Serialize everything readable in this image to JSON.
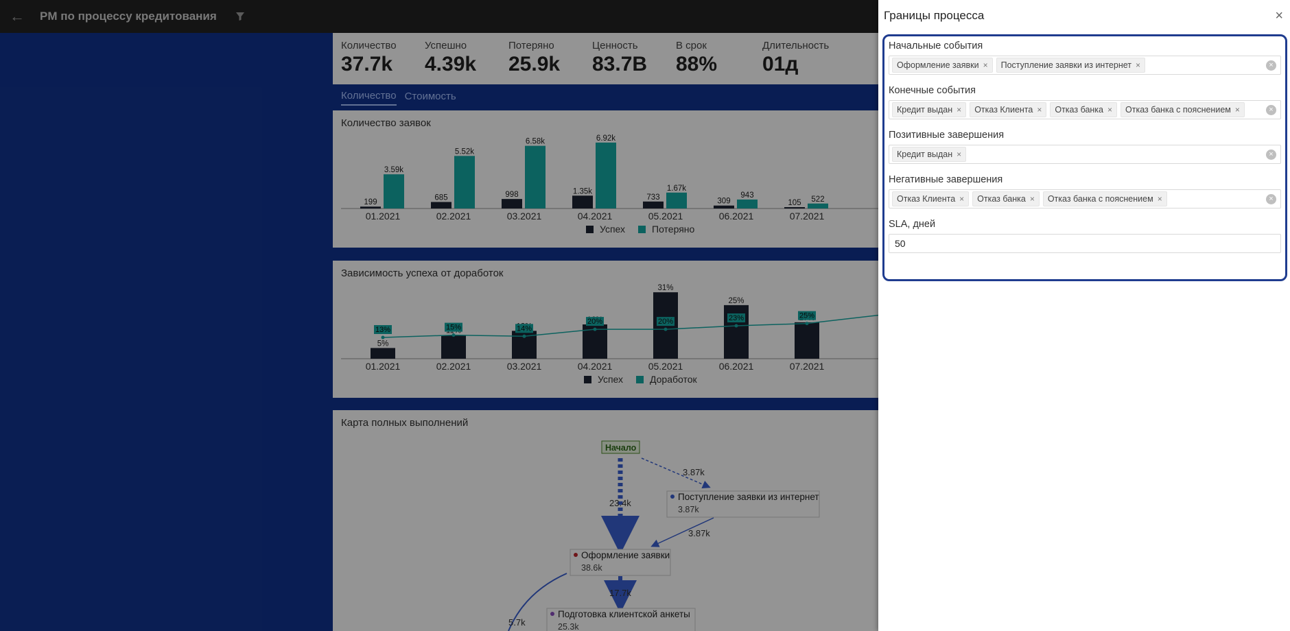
{
  "app": {
    "title": "PM по процессу кредитования",
    "back_icon": "arrow-left-icon",
    "filter_icon": "filter-icon"
  },
  "kpis": [
    {
      "label": "Количество",
      "value": "37.7k"
    },
    {
      "label": "Успешно",
      "value": "4.39k"
    },
    {
      "label": "Потеряно",
      "value": "25.9k"
    },
    {
      "label": "Ценность",
      "value": "83.7B"
    },
    {
      "label": "В срок",
      "value": "88%"
    },
    {
      "label": "Длительность",
      "value": "01д"
    }
  ],
  "tabs": [
    {
      "label": "Количество",
      "active": true
    },
    {
      "label": "Стоимость",
      "active": false
    }
  ],
  "colors": {
    "success": "#1c2333",
    "lost": "#16a9a4",
    "line": "#16a9a4",
    "flow": "#3a5fd0",
    "drawer_border": "#1f3c8f"
  },
  "chart1": {
    "title": "Количество заявок",
    "legend": [
      "Успех",
      "Потеряно"
    ]
  },
  "chart2": {
    "title": "Зависимость успеха от доработок",
    "legend": [
      "Успех",
      "Доработок"
    ]
  },
  "chart_data": [
    {
      "type": "bar",
      "title": "Количество заявок",
      "categories": [
        "01.2021",
        "02.2021",
        "03.2021",
        "04.2021",
        "05.2021",
        "06.2021",
        "07.2021"
      ],
      "series": [
        {
          "name": "Успех",
          "values": [
            199,
            685,
            998,
            1350,
            733,
            309,
            105
          ],
          "labels": [
            "199",
            "685",
            "998",
            "1.35k",
            "733",
            "309",
            "105"
          ]
        },
        {
          "name": "Потеряно",
          "values": [
            3590,
            5520,
            6580,
            6920,
            1670,
            943,
            522
          ],
          "labels": [
            "3.59k",
            "5.52k",
            "6.58k",
            "6.92k",
            "1.67k",
            "943",
            "522"
          ]
        }
      ],
      "ylim": [
        0,
        7200
      ]
    },
    {
      "type": "bar",
      "title": "Зависимость успеха от доработок",
      "categories": [
        "01.2021",
        "02.2021",
        "03.2021",
        "04.2021",
        "05.2021",
        "06.2021",
        "07.2021"
      ],
      "series": [
        {
          "name": "Успех",
          "values": [
            5,
            11,
            13,
            16,
            31,
            25,
            17
          ]
        },
        {
          "name": "Доработок",
          "values": [
            13,
            15,
            14,
            20,
            20,
            23,
            25
          ]
        }
      ],
      "ylim": [
        0,
        32
      ]
    }
  ],
  "process_map": {
    "title": "Карта полных выполнений",
    "start_label": "Начало",
    "nodes": [
      {
        "label": "Поступление заявки из интернет",
        "count": "3.87k"
      },
      {
        "label": "Оформление заявки",
        "count": "38.6k"
      },
      {
        "label": "Подготовка клиентской анкеты",
        "count": "25.3k"
      }
    ],
    "edges": [
      "3.87k",
      "23.4k",
      "3.87k",
      "17.7k",
      "5.7k"
    ]
  },
  "drawer": {
    "title": "Границы процесса",
    "close_icon": "close-icon",
    "fields": {
      "start": {
        "label": "Начальные события",
        "tags": [
          "Оформление заявки",
          "Поступление заявки из интернет"
        ]
      },
      "end": {
        "label": "Конечные события",
        "tags": [
          "Кредит выдан",
          "Отказ Клиента",
          "Отказ банка",
          "Отказ банка с пояснением"
        ]
      },
      "positive": {
        "label": "Позитивные завершения",
        "tags": [
          "Кредит выдан"
        ]
      },
      "negative": {
        "label": "Негативные завершения",
        "tags": [
          "Отказ Клиента",
          "Отказ банка",
          "Отказ банка с пояснением"
        ]
      },
      "sla": {
        "label": "SLA, дней",
        "value": "50"
      }
    }
  }
}
